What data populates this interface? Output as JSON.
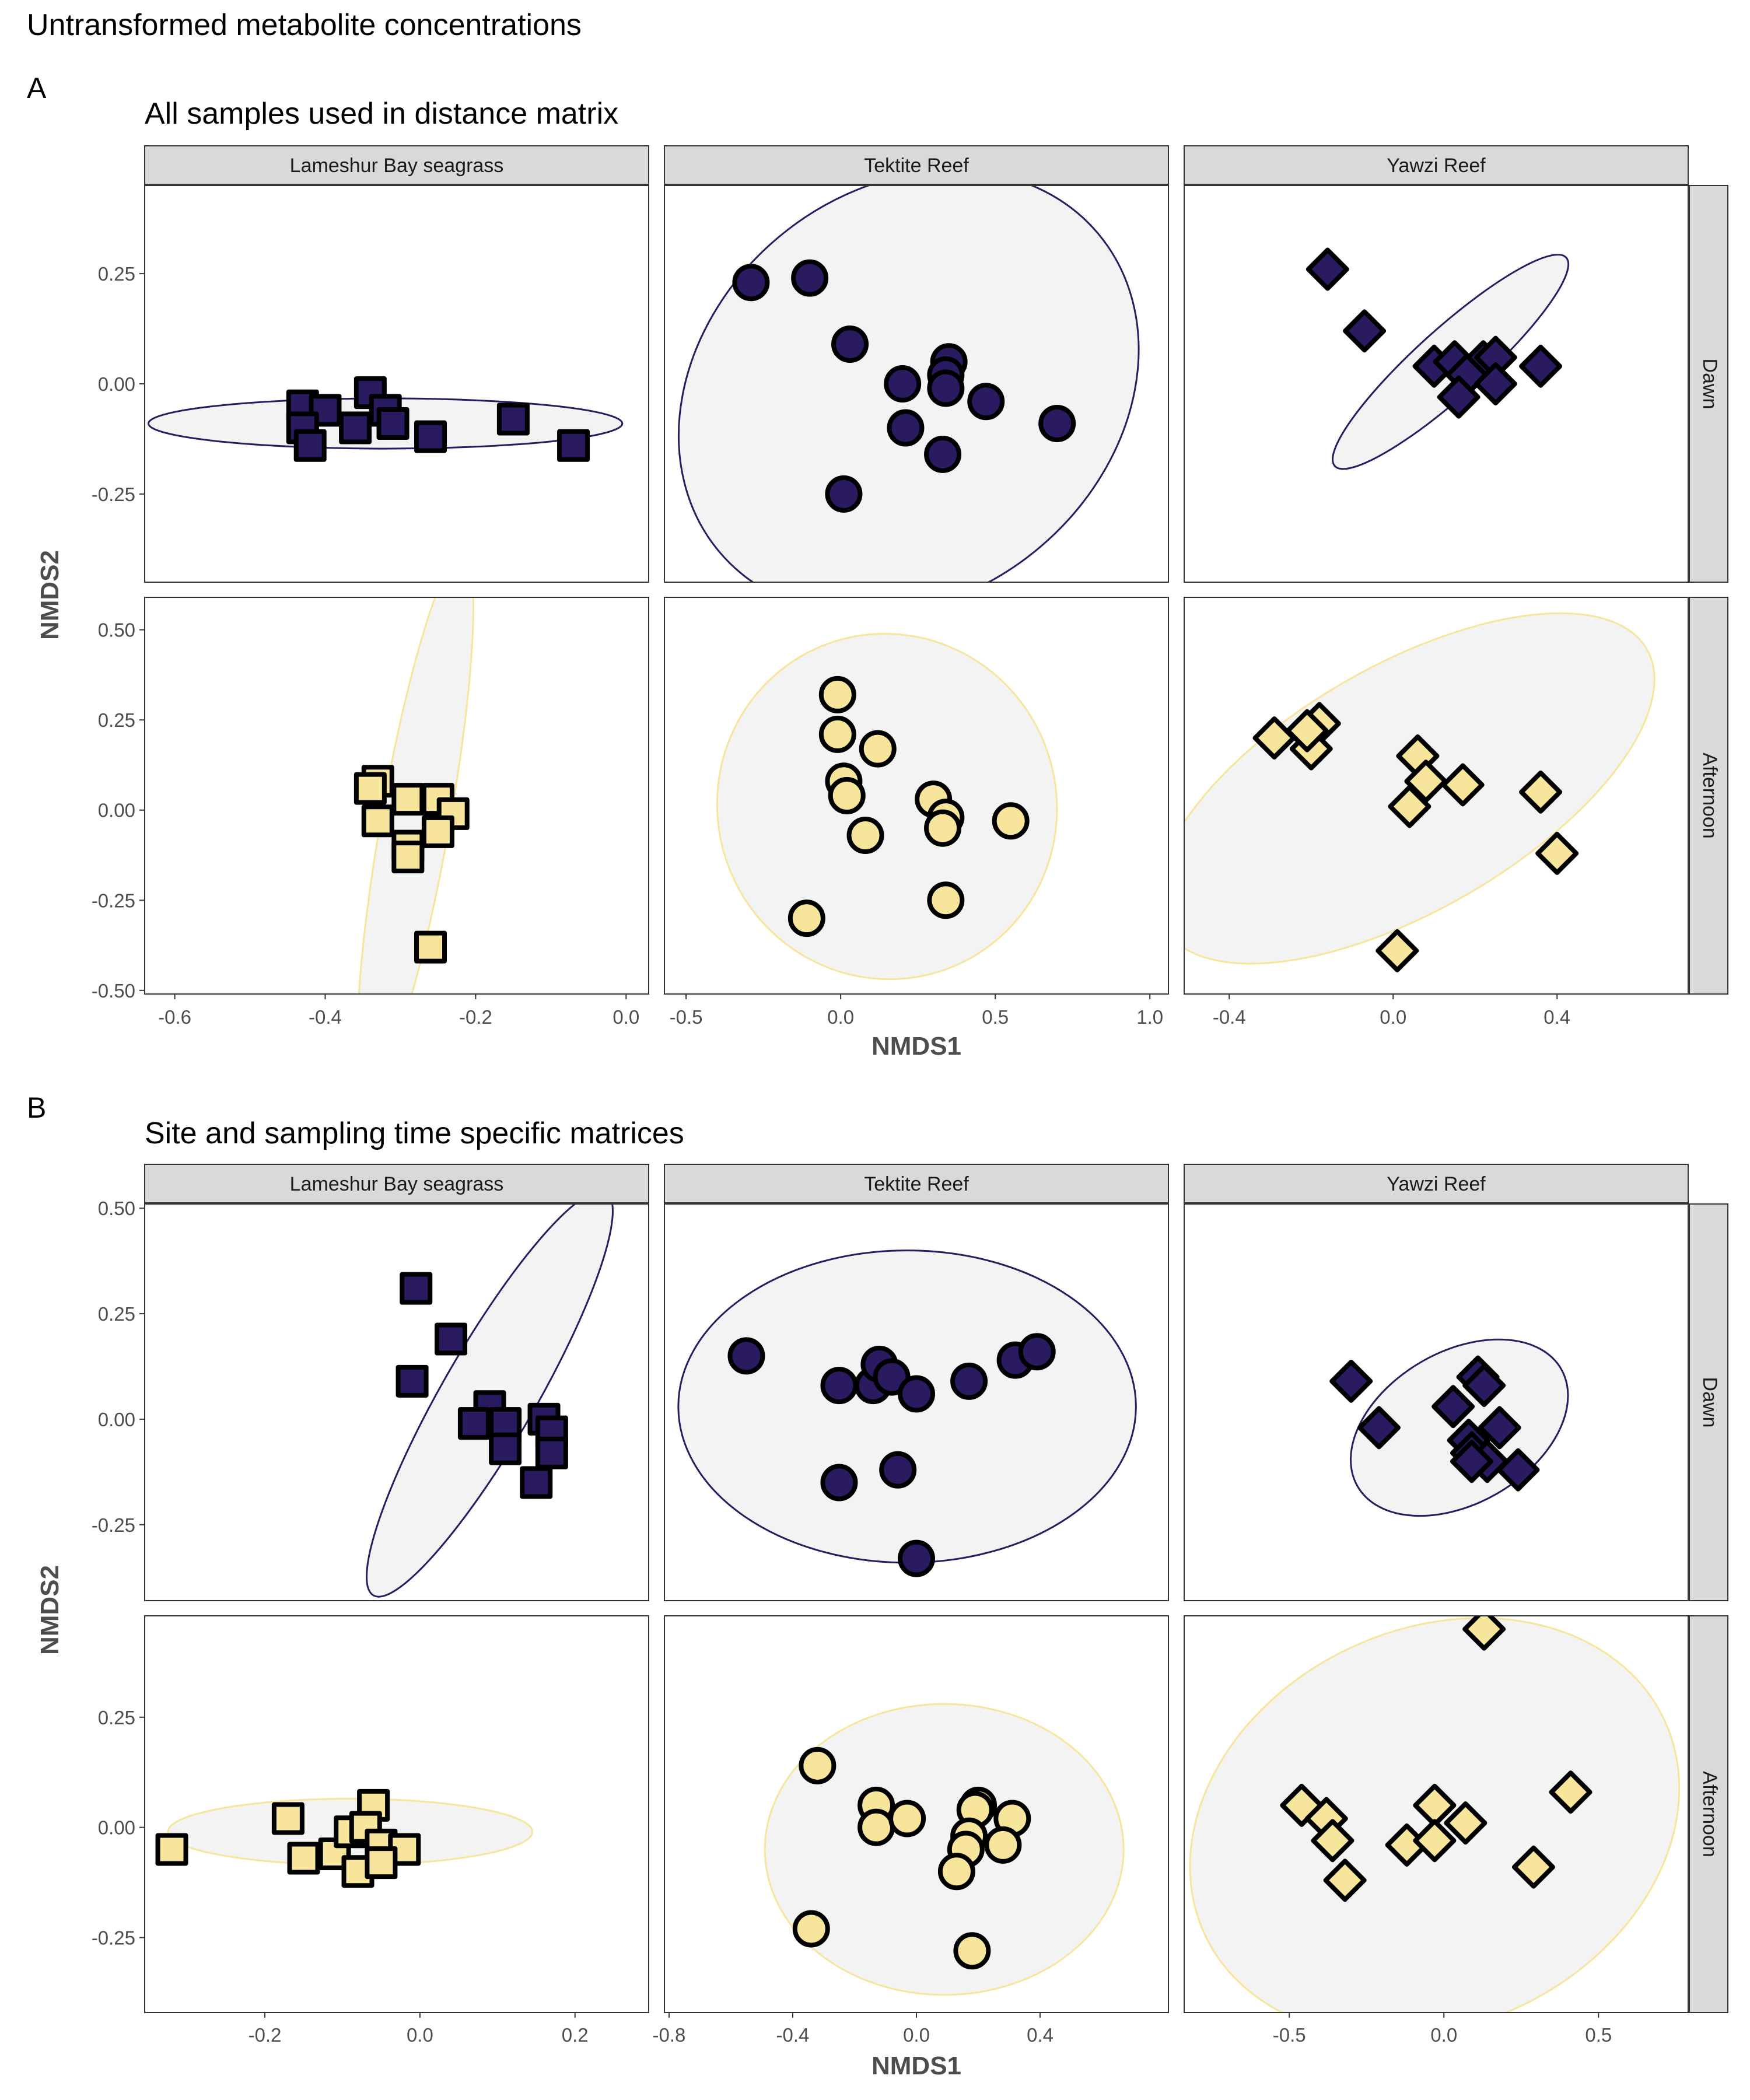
{
  "figure_title": "Untransformed metabolite concentrations",
  "colors": {
    "Dawn": "#2a1a60",
    "Afternoon": "#f6e59b",
    "strip_bg": "#d9d9d9",
    "ellipse_fill": "#f3f3f3"
  },
  "chart_data": [
    {
      "type": "scatter",
      "panel_label": "A",
      "title": "All samples used in distance matrix",
      "xlabel": "NMDS1",
      "ylabel": "NMDS2",
      "sites": [
        "Lameshur Bay seagrass",
        "Tektite Reef",
        "Yawzi Reef"
      ],
      "times": [
        "Dawn",
        "Afternoon"
      ],
      "site_shapes": [
        "square",
        "circle",
        "diamond"
      ],
      "x_ranges": [
        [
          -0.64,
          0.03
        ],
        [
          -0.57,
          1.06
        ],
        [
          -0.51,
          0.72
        ]
      ],
      "x_ticks": [
        [
          "-0.6",
          "-0.4",
          "-0.2",
          "0.0"
        ],
        [
          "-0.5",
          "0.0",
          "0.5",
          "1.0"
        ],
        [
          "-0.4",
          "0.0",
          "0.4"
        ]
      ],
      "y_ranges": [
        [
          -0.45,
          0.45
        ],
        [
          -0.51,
          0.59
        ]
      ],
      "y_ticks": [
        [
          "-0.25",
          "0.00",
          "0.25"
        ],
        [
          "-0.50",
          "-0.25",
          "0.00",
          "0.25",
          "0.50"
        ]
      ],
      "panels": [
        {
          "site": "Lameshur Bay seagrass",
          "time": "Dawn",
          "points": [
            [
              -0.43,
              -0.05
            ],
            [
              -0.4,
              -0.06
            ],
            [
              -0.43,
              -0.1
            ],
            [
              -0.42,
              -0.14
            ],
            [
              -0.36,
              -0.1
            ],
            [
              -0.34,
              -0.02
            ],
            [
              -0.32,
              -0.06
            ],
            [
              -0.31,
              -0.09
            ],
            [
              -0.26,
              -0.12
            ],
            [
              -0.15,
              -0.08
            ],
            [
              -0.07,
              -0.14
            ]
          ],
          "ellipse": {
            "cx": -0.32,
            "cy": -0.09,
            "rx": 0.315,
            "ry": 0.057,
            "angle": 0
          }
        },
        {
          "site": "Tektite Reef",
          "time": "Dawn",
          "points": [
            [
              -0.29,
              0.23
            ],
            [
              -0.1,
              0.24
            ],
            [
              0.03,
              0.09
            ],
            [
              0.2,
              0.0
            ],
            [
              0.35,
              0.05
            ],
            [
              0.34,
              0.02
            ],
            [
              0.34,
              -0.01
            ],
            [
              0.47,
              -0.04
            ],
            [
              0.21,
              -0.1
            ],
            [
              0.33,
              -0.16
            ],
            [
              0.7,
              -0.09
            ],
            [
              0.01,
              -0.25
            ]
          ],
          "ellipse": {
            "cx": 0.22,
            "cy": -0.02,
            "rx": 0.8,
            "ry": 0.46,
            "angle": -40
          }
        },
        {
          "site": "Yawzi Reef",
          "time": "Dawn",
          "points": [
            [
              -0.16,
              0.26
            ],
            [
              -0.07,
              0.12
            ],
            [
              0.1,
              0.04
            ],
            [
              0.15,
              0.05
            ],
            [
              0.22,
              0.05
            ],
            [
              0.25,
              0.06
            ],
            [
              0.18,
              0.02
            ],
            [
              0.16,
              -0.03
            ],
            [
              0.25,
              0.0
            ],
            [
              0.36,
              0.04
            ]
          ],
          "ellipse": {
            "cx": 0.14,
            "cy": 0.05,
            "rx": 0.38,
            "ry": 0.076,
            "angle": -42
          }
        },
        {
          "site": "Lameshur Bay seagrass",
          "time": "Afternoon",
          "points": [
            [
              -0.33,
              0.08
            ],
            [
              -0.34,
              0.06
            ],
            [
              -0.29,
              0.03
            ],
            [
              -0.33,
              -0.03
            ],
            [
              -0.25,
              0.03
            ],
            [
              -0.23,
              -0.01
            ],
            [
              -0.25,
              -0.06
            ],
            [
              -0.29,
              -0.1
            ],
            [
              -0.29,
              -0.13
            ],
            [
              -0.26,
              -0.38
            ]
          ],
          "ellipse": {
            "cx": -0.28,
            "cy": -0.03,
            "rx": 0.36,
            "ry": 0.095,
            "angle": -80
          }
        },
        {
          "site": "Tektite Reef",
          "time": "Afternoon",
          "points": [
            [
              -0.01,
              0.32
            ],
            [
              -0.01,
              0.21
            ],
            [
              0.01,
              0.08
            ],
            [
              0.02,
              0.04
            ],
            [
              0.12,
              0.17
            ],
            [
              0.08,
              -0.07
            ],
            [
              0.3,
              0.03
            ],
            [
              0.34,
              -0.02
            ],
            [
              0.33,
              -0.05
            ],
            [
              0.55,
              -0.03
            ],
            [
              -0.11,
              -0.3
            ],
            [
              0.34,
              -0.25
            ]
          ],
          "ellipse": {
            "cx": 0.15,
            "cy": 0.01,
            "rx": 0.56,
            "ry": 0.47,
            "angle": 70
          }
        },
        {
          "site": "Yawzi Reef",
          "time": "Afternoon",
          "points": [
            [
              -0.29,
              0.2
            ],
            [
              -0.18,
              0.24
            ],
            [
              -0.2,
              0.17
            ],
            [
              -0.21,
              0.22
            ],
            [
              0.06,
              0.15
            ],
            [
              0.08,
              0.08
            ],
            [
              0.17,
              0.07
            ],
            [
              0.04,
              0.01
            ],
            [
              0.36,
              0.05
            ],
            [
              0.4,
              -0.12
            ],
            [
              0.01,
              -0.39
            ]
          ],
          "ellipse": {
            "cx": 0.03,
            "cy": 0.06,
            "rx": 0.68,
            "ry": 0.34,
            "angle": -30
          }
        }
      ]
    },
    {
      "type": "scatter",
      "panel_label": "B",
      "title": "Site and sampling time specific matrices",
      "xlabel": "NMDS1",
      "ylabel": "NMDS2",
      "sites": [
        "Lameshur Bay seagrass",
        "Tektite Reef",
        "Yawzi Reef"
      ],
      "times": [
        "Dawn",
        "Afternoon"
      ],
      "site_shapes": [
        "square",
        "circle",
        "diamond"
      ],
      "x_ranges": [
        [
          -0.355,
          0.295
        ],
        [
          -0.815,
          0.815
        ],
        [
          -0.84,
          0.79
        ]
      ],
      "x_ticks": [
        [
          "-0.2",
          "0.0",
          "0.2"
        ],
        [
          "-0.8",
          "-0.4",
          "0.0",
          "0.4"
        ],
        [
          "-0.5",
          "0.0",
          "0.5"
        ]
      ],
      "y_ranges": [
        [
          -0.43,
          0.51
        ],
        [
          -0.42,
          0.48
        ]
      ],
      "y_ticks": [
        [
          "-0.25",
          "0.00",
          "0.25",
          "0.50"
        ],
        [
          "-0.25",
          "0.00",
          "0.25"
        ]
      ],
      "panels": [
        {
          "site": "Lameshur Bay seagrass",
          "time": "Dawn",
          "points": [
            [
              -0.005,
              0.31
            ],
            [
              0.04,
              0.19
            ],
            [
              -0.01,
              0.09
            ],
            [
              0.09,
              0.03
            ],
            [
              0.07,
              -0.01
            ],
            [
              0.11,
              -0.01
            ],
            [
              0.16,
              0.0
            ],
            [
              0.17,
              -0.03
            ],
            [
              0.11,
              -0.07
            ],
            [
              0.17,
              -0.08
            ],
            [
              0.15,
              -0.15
            ]
          ],
          "ellipse": {
            "cx": 0.09,
            "cy": 0.06,
            "rx": 0.3,
            "ry": 0.11,
            "angle": -60
          }
        },
        {
          "site": "Tektite Reef",
          "time": "Dawn",
          "points": [
            [
              -0.55,
              0.15
            ],
            [
              -0.25,
              0.08
            ],
            [
              -0.14,
              0.08
            ],
            [
              -0.12,
              0.13
            ],
            [
              -0.08,
              0.1
            ],
            [
              0.0,
              0.06
            ],
            [
              0.17,
              0.09
            ],
            [
              0.32,
              0.14
            ],
            [
              0.39,
              0.16
            ],
            [
              -0.25,
              -0.15
            ],
            [
              -0.06,
              -0.12
            ],
            [
              0.0,
              -0.33
            ]
          ],
          "ellipse": {
            "cx": -0.03,
            "cy": 0.03,
            "rx": 0.74,
            "ry": 0.37,
            "angle": 0
          }
        },
        {
          "site": "Yawzi Reef",
          "time": "Dawn",
          "points": [
            [
              -0.3,
              0.09
            ],
            [
              -0.21,
              -0.02
            ],
            [
              0.03,
              0.03
            ],
            [
              0.11,
              0.1
            ],
            [
              0.13,
              0.08
            ],
            [
              0.18,
              -0.02
            ],
            [
              0.08,
              -0.05
            ],
            [
              0.09,
              -0.08
            ],
            [
              0.14,
              -0.1
            ],
            [
              0.09,
              -0.1
            ],
            [
              0.24,
              -0.12
            ]
          ],
          "ellipse": {
            "cx": 0.05,
            "cy": -0.02,
            "rx": 0.38,
            "ry": 0.18,
            "angle": -30
          }
        },
        {
          "site": "Lameshur Bay seagrass",
          "time": "Afternoon",
          "points": [
            [
              -0.32,
              -0.05
            ],
            [
              -0.17,
              0.02
            ],
            [
              -0.15,
              -0.07
            ],
            [
              -0.11,
              -0.06
            ],
            [
              -0.09,
              -0.01
            ],
            [
              -0.06,
              0.05
            ],
            [
              -0.07,
              0.0
            ],
            [
              -0.05,
              -0.04
            ],
            [
              -0.02,
              -0.05
            ],
            [
              -0.08,
              -0.1
            ],
            [
              -0.05,
              -0.08
            ]
          ],
          "ellipse": {
            "cx": -0.09,
            "cy": -0.01,
            "rx": 0.235,
            "ry": 0.075,
            "angle": 0
          }
        },
        {
          "site": "Tektite Reef",
          "time": "Afternoon",
          "points": [
            [
              -0.32,
              0.14
            ],
            [
              -0.13,
              0.05
            ],
            [
              -0.13,
              0.0
            ],
            [
              -0.03,
              0.02
            ],
            [
              0.2,
              0.05
            ],
            [
              0.19,
              0.04
            ],
            [
              0.31,
              0.02
            ],
            [
              0.17,
              -0.02
            ],
            [
              0.16,
              -0.05
            ],
            [
              0.28,
              -0.04
            ],
            [
              0.13,
              -0.1
            ],
            [
              -0.34,
              -0.23
            ],
            [
              0.18,
              -0.28
            ]
          ],
          "ellipse": {
            "cx": 0.09,
            "cy": -0.05,
            "rx": 0.58,
            "ry": 0.33,
            "angle": 0
          }
        },
        {
          "site": "Yawzi Reef",
          "time": "Afternoon",
          "points": [
            [
              0.13,
              0.45
            ],
            [
              -0.46,
              0.05
            ],
            [
              -0.38,
              0.02
            ],
            [
              -0.36,
              -0.03
            ],
            [
              -0.12,
              -0.04
            ],
            [
              -0.03,
              0.05
            ],
            [
              -0.03,
              -0.03
            ],
            [
              0.07,
              0.01
            ],
            [
              0.29,
              -0.09
            ],
            [
              0.41,
              0.08
            ],
            [
              -0.32,
              -0.12
            ]
          ],
          "ellipse": {
            "cx": -0.03,
            "cy": 0.0,
            "rx": 0.82,
            "ry": 0.45,
            "angle": -25
          }
        }
      ]
    }
  ]
}
